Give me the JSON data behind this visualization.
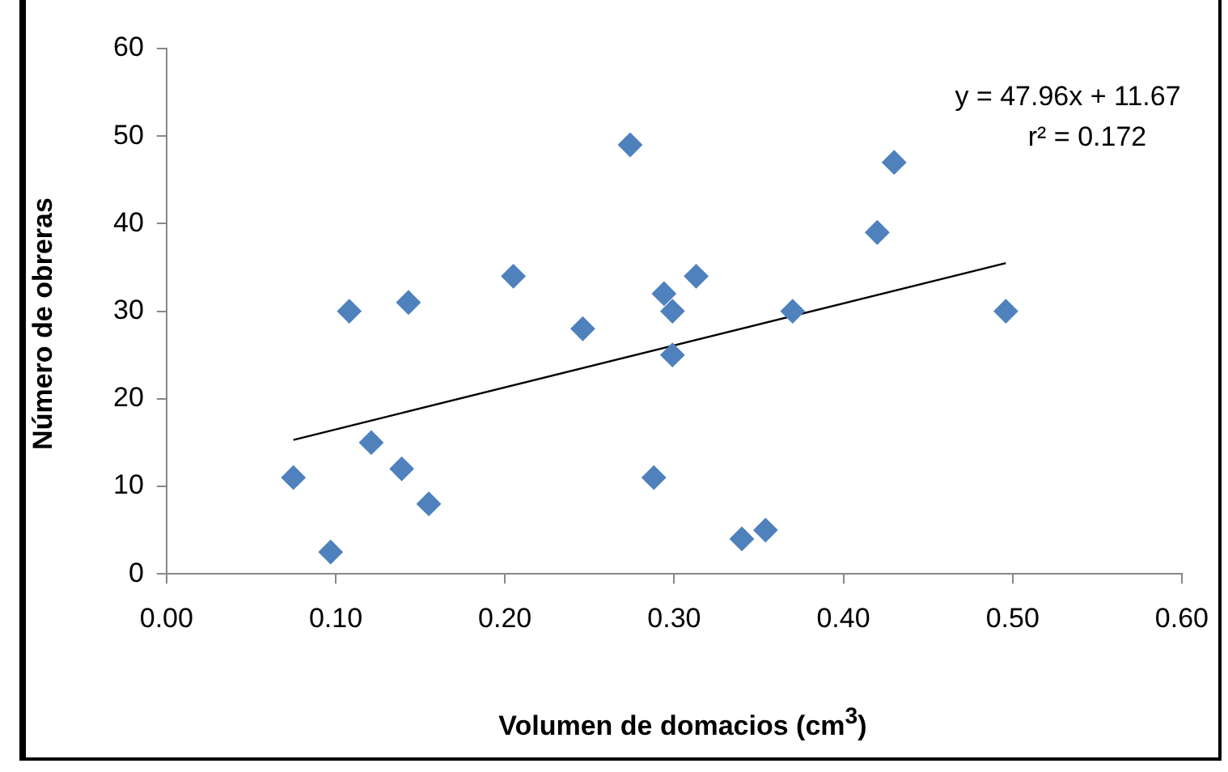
{
  "chart_data": {
    "type": "scatter",
    "xlabel": "Volumen de domacios  (cm$^{3}$)",
    "ylabel": "Número de obreras",
    "xlim": [
      0,
      0.6
    ],
    "xticks": [
      {
        "value": 0,
        "label": "0.00"
      },
      {
        "value": 0.1,
        "label": "0.10"
      },
      {
        "value": 0.2,
        "label": "0.20"
      },
      {
        "value": 0.3,
        "label": "0.30"
      },
      {
        "value": 0.4,
        "label": "0.40"
      },
      {
        "value": 0.5,
        "label": "0.50"
      },
      {
        "value": 0.6,
        "label": "0.60"
      }
    ],
    "ylim": [
      0,
      60
    ],
    "yticks": [
      0,
      10,
      20,
      30,
      40,
      50,
      60
    ],
    "grid": false,
    "legend": false,
    "annotations": [
      "y = 47.96x + 11.67",
      "r² = 0.172"
    ],
    "series": [
      {
        "marker": "diamond",
        "color": "#4f81bd",
        "x": [
          0.075,
          0.097,
          0.108,
          0.121,
          0.139,
          0.143,
          0.155,
          0.205,
          0.246,
          0.274,
          0.288,
          0.294,
          0.299,
          0.299,
          0.313,
          0.34,
          0.354,
          0.37,
          0.42,
          0.43,
          0.496
        ],
        "values": [
          11,
          2.5,
          30,
          15,
          12,
          31,
          8,
          34,
          28,
          49,
          11,
          32,
          30,
          25,
          34,
          4,
          5,
          30,
          39,
          47,
          30
        ]
      },
      {
        "type": "line",
        "marker": "none",
        "color": "#000000",
        "x": [
          0.075,
          0.496
        ],
        "values": [
          15.3,
          35.5
        ]
      }
    ]
  }
}
